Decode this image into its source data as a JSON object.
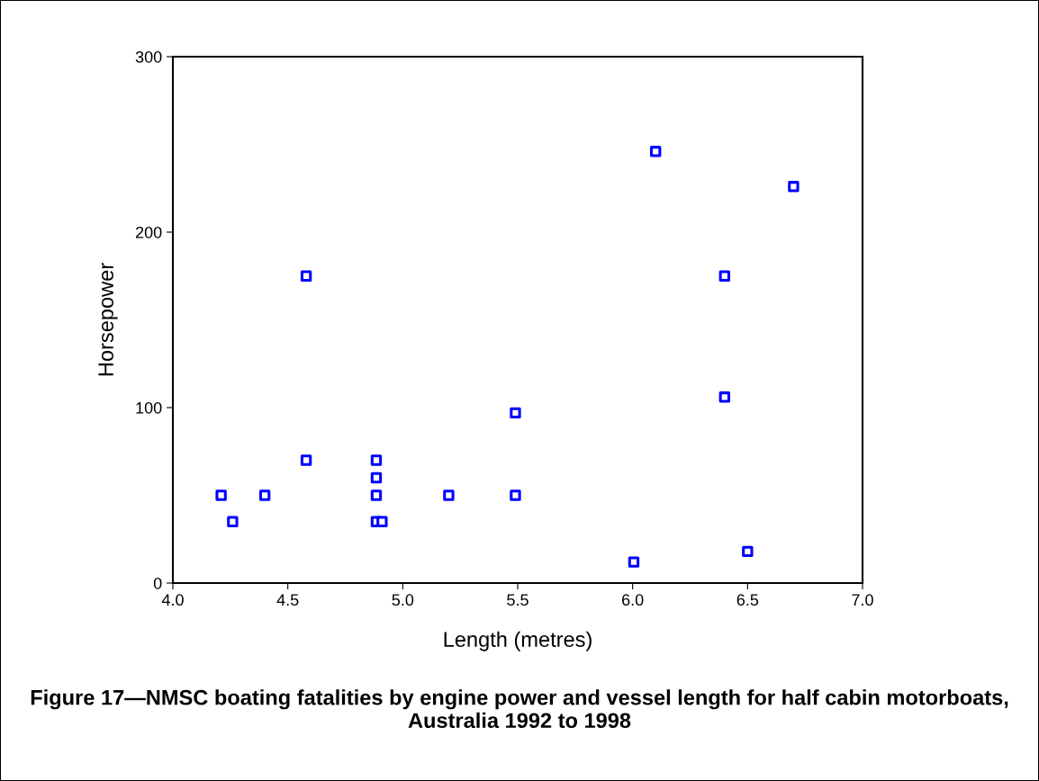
{
  "chart_data": {
    "type": "scatter",
    "title": "Figure 17—NMSC boating fatalities by engine power and vessel length for half cabin motorboats, Australia 1992 to 1998",
    "xlabel": "Length (metres)",
    "ylabel": "Horsepower",
    "series": [
      {
        "color": "#0000ff",
        "x": [
          4.21,
          4.26,
          4.4,
          4.58,
          4.58,
          4.885,
          4.885,
          4.885,
          4.885,
          4.91,
          5.2,
          5.49,
          5.49,
          6.005,
          6.1,
          6.4,
          6.4,
          6.5,
          6.7
        ],
        "values": [
          50,
          35,
          50,
          175,
          70,
          70,
          60,
          50,
          35,
          35,
          50,
          97,
          50,
          12,
          246,
          175,
          106,
          18,
          226
        ]
      }
    ],
    "xlim": [
      4.0,
      7.0
    ],
    "xticks": [
      {
        "value": 4.0,
        "label": "4.0"
      },
      {
        "value": 4.5,
        "label": "4.5"
      },
      {
        "value": 5.0,
        "label": "5.0"
      },
      {
        "value": 5.5,
        "label": "5.5"
      },
      {
        "value": 6.0,
        "label": "6.0"
      },
      {
        "value": 6.5,
        "label": "6.5"
      },
      {
        "value": 7.0,
        "label": "7.0"
      }
    ],
    "ylim": [
      0,
      300
    ],
    "yticks": [
      0,
      100,
      200,
      300
    ],
    "marker": "square",
    "grid": false,
    "legend": false
  }
}
